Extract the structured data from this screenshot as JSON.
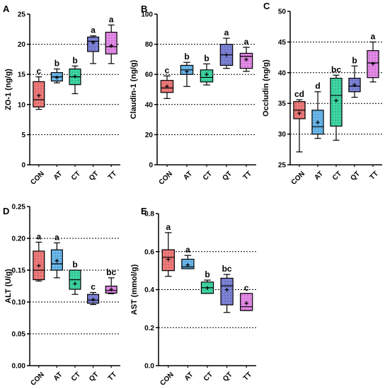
{
  "chart_data": [
    {
      "type": "box",
      "panel_label": "A",
      "ylabel": "ZO-1 (ng/g)",
      "ylim": [
        0,
        25
      ],
      "yticks": [
        0,
        5,
        10,
        15,
        20,
        25
      ],
      "grid": "dotted at 5, 10, 15, 20",
      "categories": [
        "CON",
        "AT",
        "CT",
        "QT",
        "TT"
      ],
      "colors": [
        "#f07a7a",
        "#6ab8ec",
        "#3ed6a4",
        "#7c82d6",
        "#e58ae8"
      ],
      "boxes": [
        {
          "min": 9.2,
          "q1": 9.6,
          "median": 10.8,
          "q3": 13.8,
          "max": 14.6,
          "mean": 11.5
        },
        {
          "min": 13.6,
          "q1": 13.9,
          "median": 14.6,
          "q3": 15.3,
          "max": 15.9,
          "mean": 14.5
        },
        {
          "min": 11.8,
          "q1": 13.3,
          "median": 14.6,
          "q3": 15.9,
          "max": 16.4,
          "mean": 14.7
        },
        {
          "min": 16.8,
          "q1": 18.8,
          "median": 20.5,
          "q3": 21.2,
          "max": 21.4,
          "mean": 20.3
        },
        {
          "min": 16.8,
          "q1": 18.4,
          "median": 19.6,
          "q3": 22.0,
          "max": 23.2,
          "mean": 19.8
        }
      ],
      "significance": [
        "c",
        "b",
        "b",
        "a",
        "a"
      ]
    },
    {
      "type": "box",
      "panel_label": "B",
      "ylabel": "Claudin-1 (ng/g)",
      "ylim": [
        0,
        100
      ],
      "yticks": [
        0,
        20,
        40,
        60,
        80,
        100
      ],
      "grid": "dotted at 20, 40, 60, 80",
      "categories": [
        "CON",
        "AT",
        "CT",
        "QT",
        "TT"
      ],
      "colors": [
        "#f07a7a",
        "#6ab8ec",
        "#3ed6a4",
        "#7c82d6",
        "#e58ae8"
      ],
      "boxes": [
        {
          "min": 44,
          "q1": 48,
          "median": 51,
          "q3": 56,
          "max": 59,
          "mean": 52
        },
        {
          "min": 52,
          "q1": 60,
          "median": 63,
          "q3": 66,
          "max": 68,
          "mean": 62
        },
        {
          "min": 53,
          "q1": 55,
          "median": 58,
          "q3": 63,
          "max": 67,
          "mean": 60
        },
        {
          "min": 64,
          "q1": 66,
          "median": 73,
          "q3": 80,
          "max": 84,
          "mean": 73
        },
        {
          "min": 62,
          "q1": 64,
          "median": 72,
          "q3": 74,
          "max": 78,
          "mean": 70
        }
      ],
      "significance": [
        "c",
        "b",
        "b",
        "a",
        "a"
      ]
    },
    {
      "type": "box",
      "panel_label": "C",
      "ylabel": "Occludin (ng/g)",
      "ylim": [
        25,
        50
      ],
      "yticks": [
        25,
        30,
        35,
        40,
        45,
        50
      ],
      "grid": "dotted at 30, 35, 40, 45",
      "categories": [
        "CON",
        "AT",
        "CT",
        "QT",
        "TT"
      ],
      "colors": [
        "#f07a7a",
        "#6ab8ec",
        "#3ed6a4",
        "#7c82d6",
        "#e58ae8"
      ],
      "boxes": [
        {
          "min": 27.1,
          "q1": 32.5,
          "median": 33.9,
          "q3": 35.3,
          "max": 35.6,
          "mean": 33.4
        },
        {
          "min": 29.3,
          "q1": 30.0,
          "median": 31.2,
          "q3": 33.9,
          "max": 36.9,
          "mean": 31.9
        },
        {
          "min": 29.0,
          "q1": 31.3,
          "median": 36.3,
          "q3": 39.1,
          "max": 39.6,
          "mean": 35.5
        },
        {
          "min": 36.0,
          "q1": 36.9,
          "median": 37.8,
          "q3": 39.1,
          "max": 41.1,
          "mean": 38.0
        },
        {
          "min": 38.5,
          "q1": 39.2,
          "median": 41.6,
          "q3": 43.6,
          "max": 45.0,
          "mean": 41.5
        }
      ],
      "significance": [
        "cd",
        "d",
        "bc",
        "b",
        "a"
      ]
    },
    {
      "type": "box",
      "panel_label": "D",
      "ylabel": "ALT (U/g)",
      "ylim": [
        0.0,
        0.25
      ],
      "yticks": [
        "0.00",
        "0.05",
        "0.10",
        "0.15",
        "0.20",
        "0.25"
      ],
      "grid": "dotted at 0.05, 0.10, 0.15, 0.20",
      "categories": [
        "CON",
        "AT",
        "CT",
        "QT",
        "TT"
      ],
      "colors": [
        "#f07a7a",
        "#6ab8ec",
        "#3ed6a4",
        "#7c82d6",
        "#e58ae8"
      ],
      "boxes": [
        {
          "min": 0.133,
          "q1": 0.135,
          "median": 0.15,
          "q3": 0.18,
          "max": 0.194,
          "mean": 0.157
        },
        {
          "min": 0.138,
          "q1": 0.15,
          "median": 0.16,
          "q3": 0.182,
          "max": 0.193,
          "mean": 0.165
        },
        {
          "min": 0.112,
          "q1": 0.12,
          "median": 0.135,
          "q3": 0.15,
          "max": 0.15,
          "mean": 0.129
        },
        {
          "min": 0.096,
          "q1": 0.098,
          "median": 0.103,
          "q3": 0.112,
          "max": 0.115,
          "mean": 0.104
        },
        {
          "min": 0.113,
          "q1": 0.114,
          "median": 0.118,
          "q3": 0.125,
          "max": 0.138,
          "mean": 0.12
        }
      ],
      "significance": [
        "a",
        "a",
        "b",
        "c",
        "bc"
      ]
    },
    {
      "type": "box",
      "panel_label": "E",
      "ylabel": "AST (mmol/g)",
      "ylim": [
        0.0,
        0.8
      ],
      "yticks": [
        "0.0",
        "0.2",
        "0.4",
        "0.6",
        "0.8"
      ],
      "grid": "dotted at 0.2, 0.4, 0.6",
      "categories": [
        "CON",
        "AT",
        "CT",
        "QT",
        "TT"
      ],
      "colors": [
        "#f07a7a",
        "#6ab8ec",
        "#3ed6a4",
        "#7c82d6",
        "#e58ae8"
      ],
      "boxes": [
        {
          "min": 0.47,
          "q1": 0.5,
          "median": 0.57,
          "q3": 0.61,
          "max": 0.7,
          "mean": 0.56
        },
        {
          "min": 0.51,
          "q1": 0.51,
          "median": 0.52,
          "q3": 0.56,
          "max": 0.58,
          "mean": 0.53
        },
        {
          "min": 0.38,
          "q1": 0.38,
          "median": 0.41,
          "q3": 0.44,
          "max": 0.45,
          "mean": 0.41
        },
        {
          "min": 0.28,
          "q1": 0.32,
          "median": 0.42,
          "q3": 0.46,
          "max": 0.48,
          "mean": 0.4
        },
        {
          "min": 0.29,
          "q1": 0.29,
          "median": 0.31,
          "q3": 0.38,
          "max": 0.38,
          "mean": 0.33
        }
      ],
      "significance": [
        "a",
        "a",
        "b",
        "bc",
        "c"
      ]
    }
  ]
}
